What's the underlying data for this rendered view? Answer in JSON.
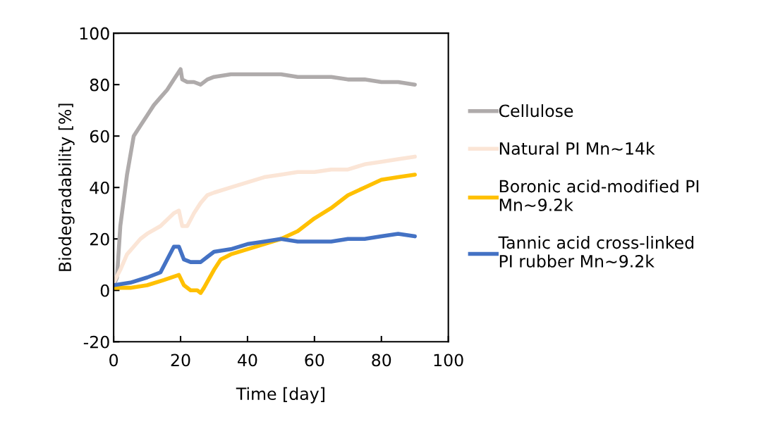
{
  "chart_data": {
    "type": "line",
    "xlabel": "Time [day]",
    "ylabel": "Biodegradability [%]",
    "xlim": [
      0,
      100
    ],
    "xticks": [
      0,
      20,
      40,
      60,
      80,
      100
    ],
    "ylim": [
      -20,
      100
    ],
    "yticks": [
      -20,
      0,
      20,
      40,
      60,
      80,
      100
    ],
    "grid": false,
    "legend": "right",
    "marker": "none",
    "line_style": "solid",
    "series": [
      {
        "name": "Cellulose",
        "color": "#afabab",
        "x": [
          0,
          1,
          2,
          4,
          6,
          8,
          10,
          12,
          14,
          16,
          18,
          20,
          20.5,
          22,
          24,
          26,
          28,
          30,
          35,
          40,
          45,
          50,
          55,
          60,
          65,
          70,
          75,
          80,
          85,
          90
        ],
        "values": [
          2,
          5,
          25,
          45,
          60,
          64,
          68,
          72,
          75,
          78,
          82,
          86,
          82,
          81,
          81,
          80,
          82,
          83,
          84,
          84,
          84,
          84,
          83,
          83,
          83,
          82,
          82,
          81,
          81,
          80
        ]
      },
      {
        "name": "Natural PI Mn~14k",
        "color": "#fbe5d6",
        "x": [
          0,
          2,
          4,
          6,
          8,
          10,
          14,
          18,
          19.5,
          20.5,
          22,
          24,
          26,
          28,
          30,
          35,
          40,
          45,
          50,
          55,
          60,
          65,
          70,
          75,
          80,
          85,
          90
        ],
        "values": [
          3,
          8,
          14,
          17,
          20,
          22,
          25,
          30,
          31,
          25,
          25,
          30,
          34,
          37,
          38,
          40,
          42,
          44,
          45,
          46,
          46,
          47,
          47,
          49,
          50,
          51,
          52
        ]
      },
      {
        "name": "Boronic acid-modified PI\nMn~9.2k",
        "color": "#ffc000",
        "x": [
          0,
          5,
          10,
          15,
          19.5,
          21,
          23,
          25,
          26,
          27,
          30,
          32,
          35,
          40,
          45,
          50,
          55,
          60,
          65,
          70,
          75,
          80,
          85,
          90
        ],
        "values": [
          1,
          1,
          2,
          4,
          6,
          2,
          0,
          0,
          -1,
          1,
          8,
          12,
          14,
          16,
          18,
          20,
          23,
          28,
          32,
          37,
          40,
          43,
          44,
          45
        ]
      },
      {
        "name": "Tannic acid cross-linked\nPI rubber Mn~9.2k",
        "color": "#4472c4",
        "x": [
          0,
          5,
          10,
          14,
          16,
          18,
          19.5,
          21,
          23,
          26,
          28,
          30,
          35,
          40,
          45,
          50,
          55,
          60,
          65,
          70,
          75,
          80,
          85,
          90
        ],
        "values": [
          2,
          3,
          5,
          7,
          12,
          17,
          17,
          12,
          11,
          11,
          13,
          15,
          16,
          18,
          19,
          20,
          19,
          19,
          19,
          20,
          20,
          21,
          22,
          21
        ]
      }
    ]
  }
}
